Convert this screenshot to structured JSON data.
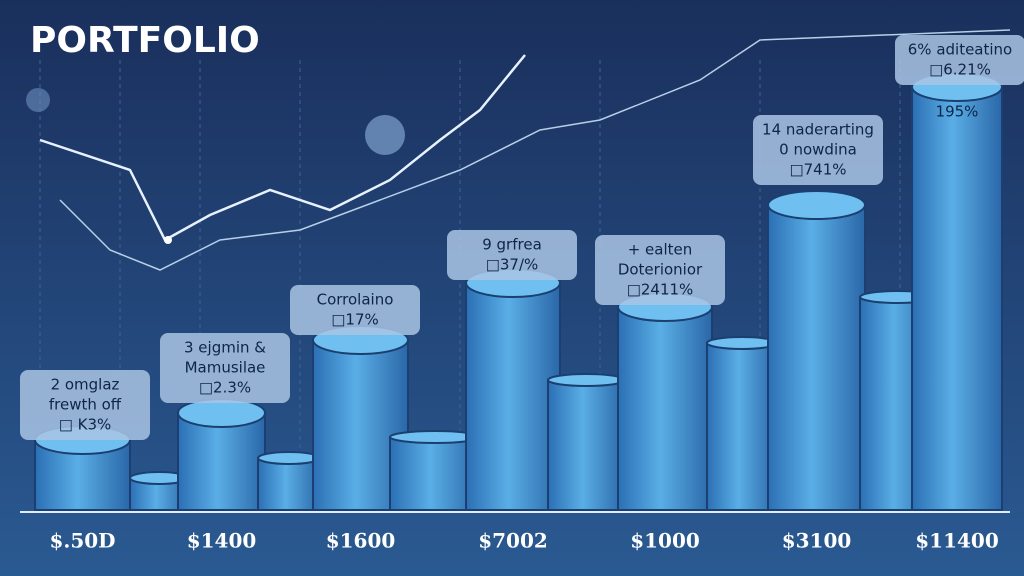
{
  "chart_data": {
    "type": "bar",
    "title": "PORTFOLIO",
    "categories": [
      "$.50D",
      null,
      "$1400",
      null,
      "$1600",
      null,
      "$7002",
      null,
      "$1000",
      null,
      "$3100",
      null,
      "$11400"
    ],
    "values": [
      70,
      32,
      97,
      52,
      170,
      73,
      227,
      130,
      203,
      167,
      305,
      213,
      423
    ],
    "color": "#3f8fd0",
    "ylim": [
      0,
      440
    ],
    "annotations": [
      [
        "2 omglaz",
        "frewth off",
        "□ K3%"
      ],
      [
        "3 ejgmin &",
        "Mamusilae",
        "□2.3%"
      ],
      [
        "Corrolaino",
        "□17%"
      ],
      [
        "9 grfrea",
        "□37/%"
      ],
      [
        "+ ealten",
        "Doterionior",
        "□2411%"
      ],
      [
        "14 naderarting",
        "0 nowdina",
        "□741%"
      ],
      [
        "6% aditeatino",
        "□6.21%"
      ]
    ],
    "bar_label": "195%"
  }
}
